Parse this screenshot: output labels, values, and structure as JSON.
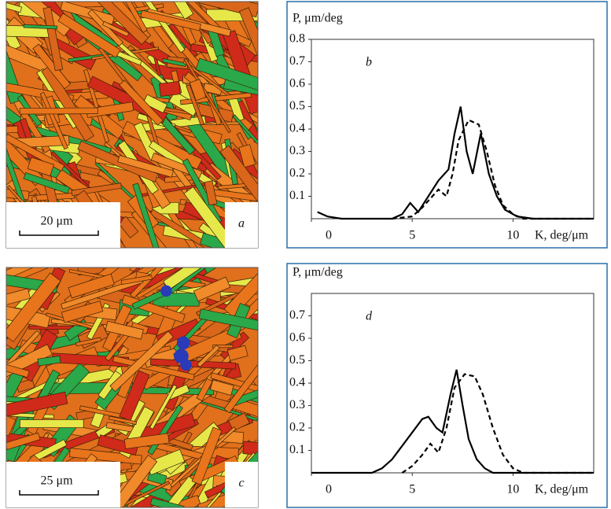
{
  "figure": {
    "micrographs": [
      {
        "scale_bar": "20 μm",
        "label": "a"
      },
      {
        "scale_bar": "25 μm",
        "label": "c"
      }
    ]
  },
  "chart_data": [
    {
      "type": "line",
      "panel_label": "b",
      "y_label": "P, μm/deg",
      "x_label": "K, deg/μm",
      "xlim": [
        0,
        14
      ],
      "ylim": [
        0,
        0.8
      ],
      "xticks": [
        0,
        5,
        10
      ],
      "yticks": [
        0.1,
        0.2,
        0.3,
        0.4,
        0.5,
        0.6,
        0.7,
        0.8
      ],
      "series": [
        {
          "color": "#000000",
          "dashed": false,
          "x": [
            0.3,
            0.8,
            1.5,
            4,
            4.5,
            4.9,
            5.3,
            5.8,
            6.3,
            6.8,
            7.1,
            7.4,
            7.7,
            8.0,
            8.4,
            8.8,
            9.2,
            9.6,
            10.2,
            11,
            14
          ],
          "values": [
            0.03,
            0.01,
            0,
            0,
            0.02,
            0.07,
            0.03,
            0.1,
            0.17,
            0.22,
            0.38,
            0.5,
            0.3,
            0.2,
            0.38,
            0.2,
            0.1,
            0.04,
            0.01,
            0,
            0
          ]
        },
        {
          "color": "#000000",
          "dashed": true,
          "x": [
            4,
            5,
            5.5,
            6,
            6.3,
            6.7,
            7.0,
            7.3,
            7.8,
            8.3,
            8.7,
            9.1,
            9.5,
            10,
            10.5,
            14
          ],
          "values": [
            0,
            0.01,
            0.05,
            0.1,
            0.13,
            0.1,
            0.2,
            0.35,
            0.44,
            0.42,
            0.3,
            0.15,
            0.06,
            0.02,
            0,
            0
          ]
        }
      ]
    },
    {
      "type": "line",
      "panel_label": "d",
      "y_label": "P, μm/deg",
      "x_label": "K, deg/μm",
      "xlim": [
        0,
        14
      ],
      "ylim": [
        0,
        0.8
      ],
      "xticks": [
        0,
        5,
        10
      ],
      "yticks": [
        0.1,
        0.2,
        0.3,
        0.4,
        0.5,
        0.6,
        0.7
      ],
      "series": [
        {
          "color": "#000000",
          "dashed": false,
          "x": [
            0,
            3,
            3.5,
            4,
            4.5,
            5,
            5.5,
            5.8,
            6.2,
            6.5,
            6.9,
            7.2,
            7.5,
            7.8,
            8.2,
            8.6,
            9,
            14
          ],
          "values": [
            0,
            0,
            0.02,
            0.06,
            0.12,
            0.18,
            0.24,
            0.25,
            0.2,
            0.18,
            0.35,
            0.46,
            0.3,
            0.15,
            0.06,
            0.02,
            0,
            0
          ]
        },
        {
          "color": "#000000",
          "dashed": true,
          "x": [
            4.5,
            5,
            5.5,
            5.9,
            6.3,
            6.7,
            7.1,
            7.6,
            8.1,
            8.5,
            9,
            9.5,
            10,
            10.5,
            14
          ],
          "values": [
            0,
            0.03,
            0.08,
            0.13,
            0.09,
            0.2,
            0.38,
            0.44,
            0.43,
            0.35,
            0.2,
            0.08,
            0.02,
            0,
            0
          ]
        }
      ]
    }
  ]
}
